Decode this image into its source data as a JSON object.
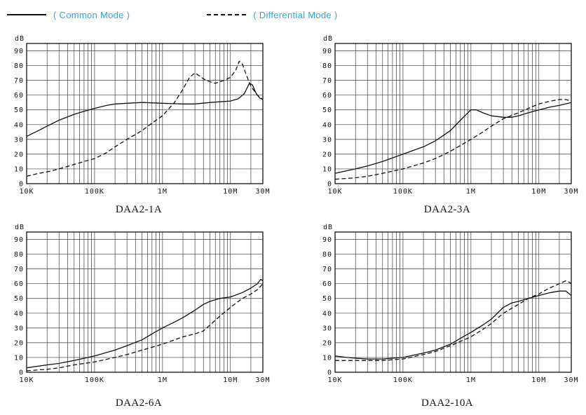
{
  "legend": {
    "common": "( Common Mode )",
    "differential": "( Differential Mode )",
    "text_color": "#29a8dd",
    "line_color": "#111111"
  },
  "chart_data": [
    {
      "type": "line",
      "title": "DAA2-1A",
      "ylabel": "dB",
      "xscale": "log",
      "xlim": [
        10000,
        30000000
      ],
      "ylim": [
        0,
        95
      ],
      "yticks": [
        0,
        10,
        20,
        30,
        40,
        50,
        60,
        70,
        80,
        90
      ],
      "xticks": [
        {
          "v": 10000,
          "label": "10K"
        },
        {
          "v": 100000,
          "label": "100K"
        },
        {
          "v": 1000000,
          "label": "1M"
        },
        {
          "v": 10000000,
          "label": "10M"
        },
        {
          "v": 30000000,
          "label": "30M"
        }
      ],
      "series": [
        {
          "name": "Common Mode",
          "style": "solid",
          "points": [
            [
              10000,
              32
            ],
            [
              15000,
              36
            ],
            [
              20000,
              39
            ],
            [
              30000,
              43
            ],
            [
              50000,
              47
            ],
            [
              70000,
              49
            ],
            [
              100000,
              51
            ],
            [
              150000,
              53
            ],
            [
              200000,
              54
            ],
            [
              300000,
              54.5
            ],
            [
              500000,
              55
            ],
            [
              1000000,
              54.5
            ],
            [
              2000000,
              54
            ],
            [
              3000000,
              54
            ],
            [
              5000000,
              55
            ],
            [
              7000000,
              55.5
            ],
            [
              10000000,
              56
            ],
            [
              13000000,
              57.5
            ],
            [
              16000000,
              61
            ],
            [
              19000000,
              68
            ],
            [
              21000000,
              67
            ],
            [
              24000000,
              61
            ],
            [
              27000000,
              58
            ],
            [
              30000000,
              57
            ]
          ]
        },
        {
          "name": "Differential Mode",
          "style": "dashed",
          "points": [
            [
              10000,
              5
            ],
            [
              15000,
              7
            ],
            [
              20000,
              8
            ],
            [
              30000,
              10
            ],
            [
              50000,
              13
            ],
            [
              70000,
              15
            ],
            [
              100000,
              17
            ],
            [
              150000,
              21
            ],
            [
              200000,
              25
            ],
            [
              300000,
              30
            ],
            [
              500000,
              36
            ],
            [
              700000,
              41
            ],
            [
              1000000,
              46
            ],
            [
              1500000,
              55
            ],
            [
              2000000,
              64
            ],
            [
              2500000,
              72
            ],
            [
              3000000,
              75
            ],
            [
              3500000,
              73
            ],
            [
              4000000,
              71
            ],
            [
              5000000,
              69
            ],
            [
              6000000,
              68
            ],
            [
              7000000,
              69
            ],
            [
              8000000,
              70
            ],
            [
              10000000,
              72
            ],
            [
              12000000,
              77
            ],
            [
              13500000,
              83
            ],
            [
              15000000,
              81
            ],
            [
              17000000,
              74
            ],
            [
              20000000,
              66
            ],
            [
              25000000,
              60
            ],
            [
              30000000,
              57
            ]
          ]
        }
      ]
    },
    {
      "type": "line",
      "title": "DAA2-3A",
      "ylabel": "dB",
      "xscale": "log",
      "xlim": [
        10000,
        30000000
      ],
      "ylim": [
        0,
        95
      ],
      "yticks": [
        0,
        10,
        20,
        30,
        40,
        50,
        60,
        70,
        80,
        90
      ],
      "xticks": [
        {
          "v": 10000,
          "label": "10K"
        },
        {
          "v": 100000,
          "label": "100K"
        },
        {
          "v": 1000000,
          "label": "1M"
        },
        {
          "v": 10000000,
          "label": "10M"
        },
        {
          "v": 30000000,
          "label": "30M"
        }
      ],
      "series": [
        {
          "name": "Common Mode",
          "style": "solid",
          "points": [
            [
              10000,
              7
            ],
            [
              20000,
              10
            ],
            [
              30000,
              12
            ],
            [
              50000,
              15
            ],
            [
              100000,
              20
            ],
            [
              200000,
              25
            ],
            [
              300000,
              29
            ],
            [
              500000,
              36
            ],
            [
              700000,
              43
            ],
            [
              1000000,
              50
            ],
            [
              1200000,
              50
            ],
            [
              1500000,
              48
            ],
            [
              2000000,
              46
            ],
            [
              3000000,
              45
            ],
            [
              4000000,
              45
            ],
            [
              5000000,
              46
            ],
            [
              7000000,
              48
            ],
            [
              10000000,
              50
            ],
            [
              15000000,
              52
            ],
            [
              20000000,
              53
            ],
            [
              30000000,
              55
            ]
          ]
        },
        {
          "name": "Differential Mode",
          "style": "dashed",
          "points": [
            [
              10000,
              3
            ],
            [
              20000,
              4
            ],
            [
              30000,
              5
            ],
            [
              50000,
              7
            ],
            [
              100000,
              10
            ],
            [
              200000,
              14
            ],
            [
              300000,
              17
            ],
            [
              500000,
              22
            ],
            [
              1000000,
              30
            ],
            [
              1500000,
              35
            ],
            [
              2000000,
              39
            ],
            [
              3000000,
              44
            ],
            [
              5000000,
              48
            ],
            [
              7000000,
              51
            ],
            [
              10000000,
              54
            ],
            [
              15000000,
              56
            ],
            [
              20000000,
              57
            ],
            [
              25000000,
              57
            ],
            [
              30000000,
              56
            ]
          ]
        }
      ]
    },
    {
      "type": "line",
      "title": "DAA2-6A",
      "ylabel": "dB",
      "xscale": "log",
      "xlim": [
        10000,
        30000000
      ],
      "ylim": [
        0,
        95
      ],
      "yticks": [
        0,
        10,
        20,
        30,
        40,
        50,
        60,
        70,
        80,
        90
      ],
      "xticks": [
        {
          "v": 10000,
          "label": "10K"
        },
        {
          "v": 100000,
          "label": "100K"
        },
        {
          "v": 1000000,
          "label": "1M"
        },
        {
          "v": 10000000,
          "label": "10M"
        },
        {
          "v": 30000000,
          "label": "30M"
        }
      ],
      "series": [
        {
          "name": "Common Mode",
          "style": "solid",
          "points": [
            [
              10000,
              3
            ],
            [
              20000,
              5
            ],
            [
              30000,
              6
            ],
            [
              50000,
              8
            ],
            [
              100000,
              11
            ],
            [
              200000,
              15
            ],
            [
              300000,
              18
            ],
            [
              500000,
              22
            ],
            [
              700000,
              26
            ],
            [
              1000000,
              30
            ],
            [
              1500000,
              34
            ],
            [
              2000000,
              37
            ],
            [
              3000000,
              42
            ],
            [
              4000000,
              46
            ],
            [
              5000000,
              48
            ],
            [
              7000000,
              50
            ],
            [
              10000000,
              51
            ],
            [
              15000000,
              54
            ],
            [
              20000000,
              57
            ],
            [
              25000000,
              60
            ],
            [
              28000000,
              63
            ],
            [
              30000000,
              62
            ]
          ]
        },
        {
          "name": "Differential Mode",
          "style": "dashed",
          "points": [
            [
              10000,
              1
            ],
            [
              20000,
              2
            ],
            [
              30000,
              3
            ],
            [
              50000,
              5
            ],
            [
              100000,
              7
            ],
            [
              200000,
              10
            ],
            [
              300000,
              12
            ],
            [
              500000,
              15
            ],
            [
              1000000,
              19
            ],
            [
              1500000,
              22
            ],
            [
              2000000,
              24
            ],
            [
              3000000,
              26
            ],
            [
              4000000,
              28
            ],
            [
              5000000,
              32
            ],
            [
              7000000,
              38
            ],
            [
              10000000,
              44
            ],
            [
              15000000,
              50
            ],
            [
              20000000,
              53
            ],
            [
              25000000,
              56
            ],
            [
              30000000,
              60
            ]
          ]
        }
      ]
    },
    {
      "type": "line",
      "title": "DAA2-10A",
      "ylabel": "dB",
      "xscale": "log",
      "xlim": [
        10000,
        30000000
      ],
      "ylim": [
        0,
        95
      ],
      "yticks": [
        0,
        10,
        20,
        30,
        40,
        50,
        60,
        70,
        80,
        90
      ],
      "xticks": [
        {
          "v": 10000,
          "label": "10K"
        },
        {
          "v": 100000,
          "label": "100K"
        },
        {
          "v": 1000000,
          "label": "1M"
        },
        {
          "v": 10000000,
          "label": "10M"
        },
        {
          "v": 30000000,
          "label": "30M"
        }
      ],
      "series": [
        {
          "name": "Common Mode",
          "style": "solid",
          "points": [
            [
              10000,
              11
            ],
            [
              15000,
              10
            ],
            [
              20000,
              9.5
            ],
            [
              30000,
              9
            ],
            [
              50000,
              9
            ],
            [
              70000,
              9.5
            ],
            [
              100000,
              10
            ],
            [
              200000,
              13
            ],
            [
              300000,
              15
            ],
            [
              500000,
              19
            ],
            [
              700000,
              23
            ],
            [
              1000000,
              27
            ],
            [
              1500000,
              32
            ],
            [
              2000000,
              36
            ],
            [
              3000000,
              44
            ],
            [
              4000000,
              47
            ],
            [
              5000000,
              48
            ],
            [
              7000000,
              50
            ],
            [
              10000000,
              52
            ],
            [
              15000000,
              54
            ],
            [
              20000000,
              55
            ],
            [
              25000000,
              55
            ],
            [
              30000000,
              52
            ]
          ]
        },
        {
          "name": "Differential Mode",
          "style": "dashed",
          "points": [
            [
              10000,
              8
            ],
            [
              20000,
              8
            ],
            [
              50000,
              8
            ],
            [
              100000,
              9
            ],
            [
              200000,
              12
            ],
            [
              300000,
              14
            ],
            [
              500000,
              18
            ],
            [
              1000000,
              24
            ],
            [
              1500000,
              29
            ],
            [
              2000000,
              33
            ],
            [
              3000000,
              40
            ],
            [
              5000000,
              46
            ],
            [
              7000000,
              50
            ],
            [
              10000000,
              53
            ],
            [
              13000000,
              56
            ],
            [
              16000000,
              58
            ],
            [
              20000000,
              60
            ],
            [
              25000000,
              62
            ],
            [
              28000000,
              61
            ],
            [
              30000000,
              60
            ]
          ]
        }
      ]
    }
  ]
}
